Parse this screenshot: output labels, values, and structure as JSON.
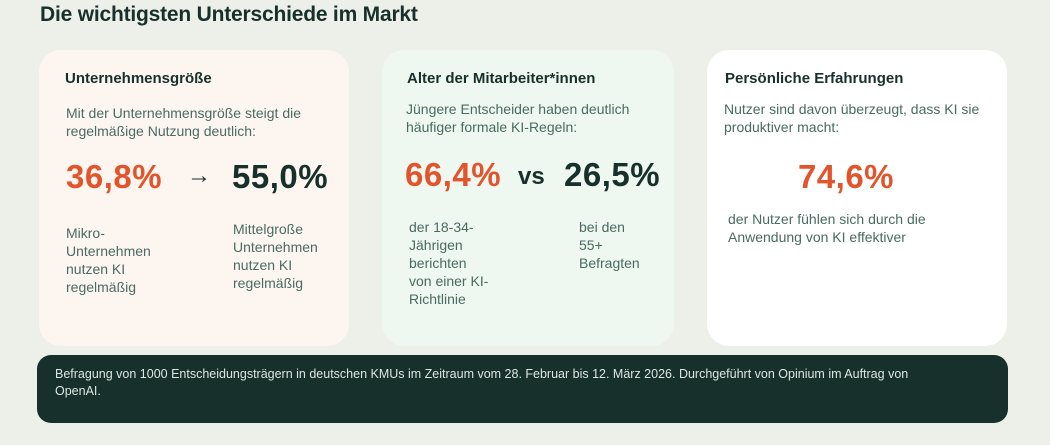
{
  "title": "Die wichtigsten Unterschiede im Markt",
  "cards": [
    {
      "heading": "Unternehmensgröße",
      "description": "Mit der Unternehmensgröße steigt die regelmäßige Nutzung deutlich:",
      "value_left": "36,8%",
      "separator": "→",
      "value_right": "55,0%",
      "label_left": [
        "Mikro-",
        "Unternehmen",
        "nutzen KI",
        "regelmäßig"
      ],
      "label_right": [
        "Mittelgroße",
        "Unternehmen",
        "nutzen KI",
        "regelmäßig"
      ]
    },
    {
      "heading": "Alter der Mitarbeiter*innen",
      "description": "Jüngere Entscheider haben deutlich häufiger formale KI-Regeln:",
      "value_left": "66,4%",
      "separator": "vs",
      "value_right": "26,5%",
      "label_left": [
        "der 18-34-",
        "Jährigen",
        "berichten",
        "von einer KI-",
        "Richtlinie"
      ],
      "label_right": [
        "bei den",
        "55+",
        "Befragten"
      ]
    },
    {
      "heading": "Persönliche Erfahrungen",
      "description": "Nutzer sind davon überzeugt, dass KI sie produktiver macht:",
      "value": "74,6%",
      "label": "der Nutzer fühlen sich durch die Anwendung von KI effektiver"
    }
  ],
  "footer": "Befragung von 1000 Entscheidungsträgern in deutschen KMUs im Zeitraum vom 28. Februar bis 12. März 2026. Durchgeführt von Opinium im Auftrag von OpenAI.",
  "colors": {
    "background": "#EDEFE9",
    "accent_orange": "#E2542B",
    "dark_green": "#17302B",
    "muted_text": "#4A6B63",
    "card_cream": "#FDF6F0",
    "card_mint": "#EEF7F0",
    "card_white": "#FFFFFF"
  },
  "icons": {
    "arrow": "arrow-right-icon"
  }
}
